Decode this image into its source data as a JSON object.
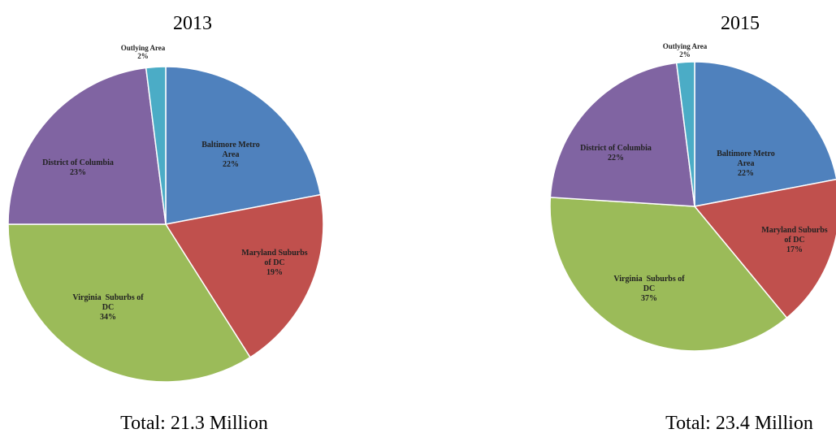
{
  "chart_data": [
    {
      "type": "pie",
      "title": "2013",
      "total": "Total: 21.3 Million",
      "slices": [
        {
          "label": "Baltimore Metro Area",
          "lines": [
            "Baltimore Metro",
            "Area",
            "22%"
          ],
          "value": 22,
          "color": "#4f81bd"
        },
        {
          "label": "Maryland Suburbs of DC",
          "lines": [
            "Maryland Suburbs",
            "of DC",
            "19%"
          ],
          "value": 19,
          "color": "#c0504d"
        },
        {
          "label": "Virginia Suburbs of DC",
          "lines": [
            "Virginia  Suburbs of",
            "DC",
            "34%"
          ],
          "value": 34,
          "color": "#9bbb59"
        },
        {
          "label": "District of Columbia",
          "lines": [
            "District of Columbia",
            "23%"
          ],
          "value": 23,
          "color": "#8064a2"
        },
        {
          "label": "Outlying Area",
          "lines": [
            "Outlying Area",
            "2%"
          ],
          "value": 2,
          "color": "#4bacc6"
        }
      ]
    },
    {
      "type": "pie",
      "title": "2015",
      "total": "Total: 23.4 Million",
      "slices": [
        {
          "label": "Baltimore Metro Area",
          "lines": [
            "Baltimore Metro",
            "Area",
            "22%"
          ],
          "value": 22,
          "color": "#4f81bd"
        },
        {
          "label": "Maryland Suburbs of DC",
          "lines": [
            "Maryland Suburbs",
            "of DC",
            "17%"
          ],
          "value": 17,
          "color": "#c0504d"
        },
        {
          "label": "Virginia Suburbs of DC",
          "lines": [
            "Virginia  Suburbs of",
            "DC",
            "37%"
          ],
          "value": 37,
          "color": "#9bbb59"
        },
        {
          "label": "District of Columbia",
          "lines": [
            "District of Columbia",
            "22%"
          ],
          "value": 22,
          "color": "#8064a2"
        },
        {
          "label": "Outlying Area",
          "lines": [
            "Outlying Area",
            "2%"
          ],
          "value": 2,
          "color": "#4bacc6"
        }
      ]
    }
  ]
}
